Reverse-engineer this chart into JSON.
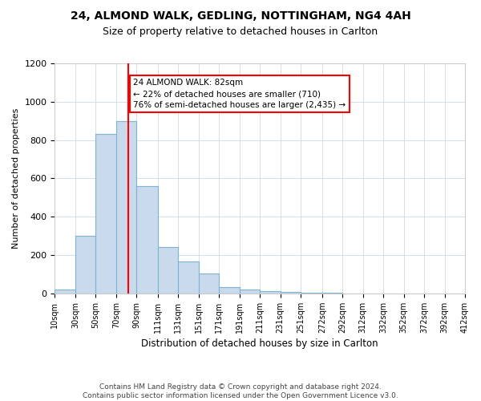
{
  "title1": "24, ALMOND WALK, GEDLING, NOTTINGHAM, NG4 4AH",
  "title2": "Size of property relative to detached houses in Carlton",
  "xlabel": "Distribution of detached houses by size in Carlton",
  "ylabel": "Number of detached properties",
  "footnote": "Contains HM Land Registry data © Crown copyright and database right 2024.\nContains public sector information licensed under the Open Government Licence v3.0.",
  "bar_color": "#c8daec",
  "bar_edge_color": "#7fb3d3",
  "annotation_line_color": "red",
  "tick_labels": [
    "10sqm",
    "30sqm",
    "50sqm",
    "70sqm",
    "90sqm",
    "111sqm",
    "131sqm",
    "151sqm",
    "171sqm",
    "191sqm",
    "211sqm",
    "231sqm",
    "251sqm",
    "272sqm",
    "292sqm",
    "312sqm",
    "332sqm",
    "352sqm",
    "372sqm",
    "392sqm",
    "412sqm"
  ],
  "tick_positions": [
    10,
    30,
    50,
    70,
    90,
    111,
    131,
    151,
    171,
    191,
    211,
    231,
    251,
    272,
    292,
    312,
    332,
    352,
    372,
    392,
    412
  ],
  "bin_lefts": [
    10,
    30,
    50,
    70,
    90,
    111,
    131,
    151,
    171,
    191,
    211,
    231,
    251,
    272,
    292,
    312,
    332,
    352,
    372,
    392
  ],
  "bin_rights": [
    30,
    50,
    70,
    90,
    111,
    131,
    151,
    171,
    191,
    211,
    231,
    251,
    272,
    292,
    312,
    332,
    352,
    372,
    392,
    412
  ],
  "heights": [
    20,
    300,
    830,
    900,
    560,
    240,
    165,
    105,
    32,
    20,
    10,
    8,
    5,
    4,
    0,
    0,
    0,
    0,
    0,
    0
  ],
  "property_size": 82,
  "annotation_line1": "24 ALMOND WALK: 82sqm",
  "annotation_line2": "← 22% of detached houses are smaller (710)",
  "annotation_line3": "76% of semi-detached houses are larger (2,435) →",
  "ylim": [
    0,
    1200
  ],
  "yticks": [
    0,
    200,
    400,
    600,
    800,
    1000,
    1200
  ],
  "grid_color": "#d5dde8",
  "background_color": "#ffffff",
  "title_fontsize": 10,
  "subtitle_fontsize": 9,
  "ylabel_fontsize": 8,
  "xlabel_fontsize": 8.5,
  "footnote_fontsize": 6.5,
  "annot_fontsize": 7.5
}
